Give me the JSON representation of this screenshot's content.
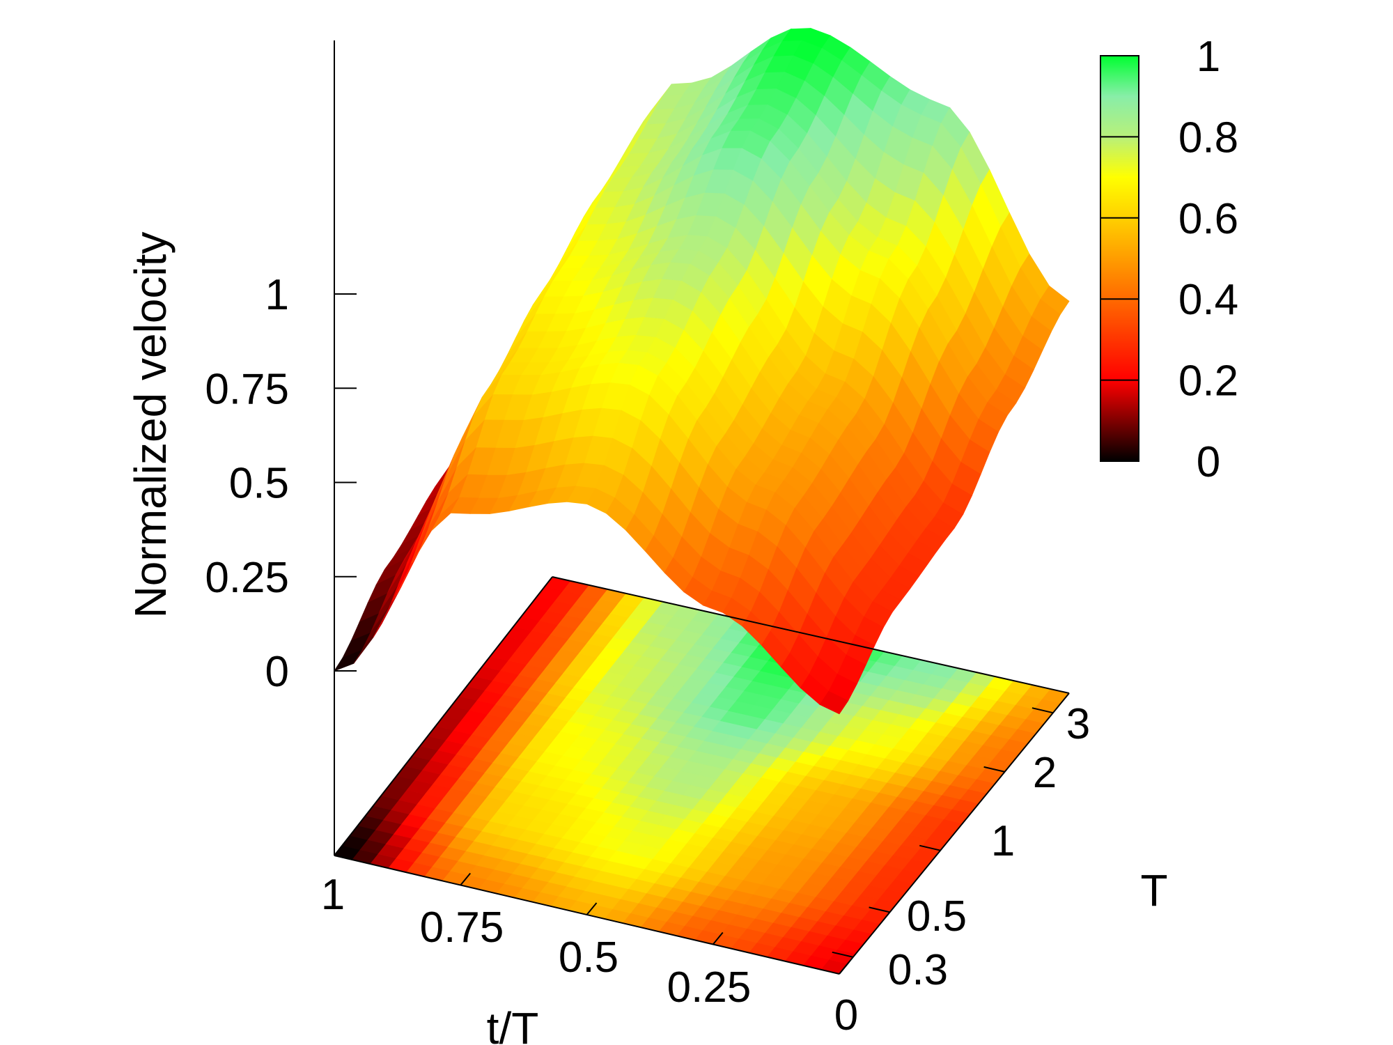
{
  "chart_data": {
    "type": "surface3d",
    "xlabel": "t/T",
    "ylabel": "T",
    "zlabel": "Normalized velocity",
    "x_ticks": [
      "1",
      "0.75",
      "0.5",
      "0.25",
      "0"
    ],
    "y_ticks": [
      "0.3",
      "0.5",
      "1",
      "2",
      "3"
    ],
    "z_ticks": [
      "0",
      "0.25",
      "0.5",
      "0.75",
      "1"
    ],
    "colorbar_ticks": [
      "0",
      "0.2",
      "0.4",
      "0.6",
      "0.8",
      "1"
    ],
    "colorbar_range": [
      0,
      1
    ],
    "colormap": [
      {
        "value": 0.0,
        "color": "#000000"
      },
      {
        "value": 0.2,
        "color": "#ff0000"
      },
      {
        "value": 0.4,
        "color": "#ff6a00"
      },
      {
        "value": 0.6,
        "color": "#ffd000"
      },
      {
        "value": 0.7,
        "color": "#ffff00"
      },
      {
        "value": 0.8,
        "color": "#b8f07a"
      },
      {
        "value": 0.9,
        "color": "#88eea8"
      },
      {
        "value": 1.0,
        "color": "#00ff30"
      }
    ],
    "x": [
      1.0,
      0.75,
      0.5,
      0.25,
      0.0
    ],
    "y": [
      0.3,
      0.5,
      1,
      2,
      3
    ],
    "z": [
      [
        0.0,
        0.5,
        0.6,
        0.4,
        0.2
      ],
      [
        0.1,
        0.7,
        0.8,
        0.55,
        0.3
      ],
      [
        0.15,
        0.78,
        0.9,
        0.6,
        0.32
      ],
      [
        0.2,
        0.85,
        1.05,
        0.8,
        0.45
      ],
      [
        0.22,
        0.9,
        1.12,
        1.0,
        0.55
      ]
    ]
  }
}
